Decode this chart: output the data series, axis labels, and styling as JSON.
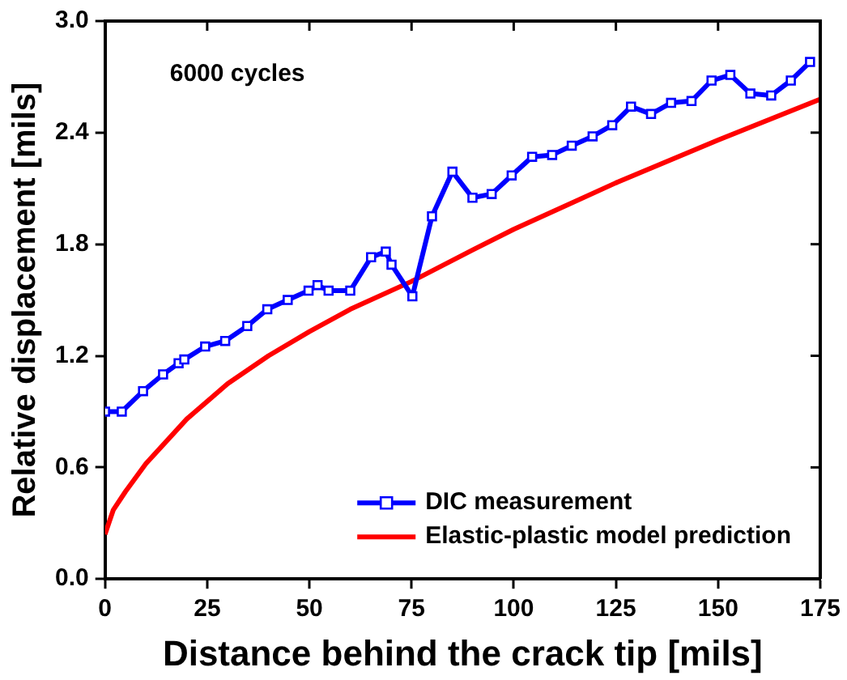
{
  "chart_data": {
    "type": "line",
    "xlabel": "Distance behind the crack tip [mils]",
    "ylabel": "Relative displacement [mils]",
    "annotations": [
      "6000 cycles"
    ],
    "xlim": [
      0,
      175
    ],
    "xticks": [
      0,
      25,
      50,
      75,
      100,
      125,
      150,
      175
    ],
    "ylim": [
      0,
      3
    ],
    "yticks": [
      {
        "value": 0,
        "label": "0.0"
      },
      {
        "value": 0.6,
        "label": "0.6"
      },
      {
        "value": 1.2,
        "label": "1.2"
      },
      {
        "value": 1.8,
        "label": "1.8"
      },
      {
        "value": 2.4,
        "label": "2.4"
      },
      {
        "value": 3,
        "label": "3.0"
      }
    ],
    "grid": false,
    "legend": "bottom right",
    "series": [
      {
        "name": "DIC measurement",
        "color": "#0000ff",
        "marker": "square",
        "x": [
          0,
          4.1,
          9.3,
          14.2,
          18,
          19.4,
          24.5,
          29.4,
          34.8,
          39.7,
          44.7,
          49.8,
          52,
          54.7,
          60,
          65.1,
          68.7,
          70.1,
          75.2,
          80,
          85,
          89.9,
          94.6,
          99.5,
          104.5,
          109.4,
          114.2,
          119.3,
          124.1,
          128.7,
          133.6,
          138.5,
          143.5,
          148.4,
          153,
          157.9,
          163,
          167.8,
          172.5
        ],
        "values": [
          0.9,
          0.9,
          1.01,
          1.1,
          1.16,
          1.18,
          1.25,
          1.28,
          1.36,
          1.45,
          1.5,
          1.55,
          1.58,
          1.55,
          1.55,
          1.73,
          1.76,
          1.69,
          1.52,
          1.95,
          2.19,
          2.05,
          2.07,
          2.17,
          2.27,
          2.28,
          2.33,
          2.38,
          2.44,
          2.54,
          2.5,
          2.56,
          2.57,
          2.68,
          2.71,
          2.61,
          2.6,
          2.68,
          2.78
        ]
      },
      {
        "name": "Elastic-plastic model prediction",
        "color": "#ff0000",
        "marker": "none",
        "x": [
          0,
          2,
          5,
          10,
          20,
          30,
          40,
          50,
          60,
          75,
          90,
          100,
          125,
          150,
          175
        ],
        "values": [
          0.24,
          0.37,
          0.47,
          0.62,
          0.86,
          1.05,
          1.2,
          1.33,
          1.45,
          1.6,
          1.77,
          1.88,
          2.13,
          2.36,
          2.58
        ]
      }
    ]
  }
}
